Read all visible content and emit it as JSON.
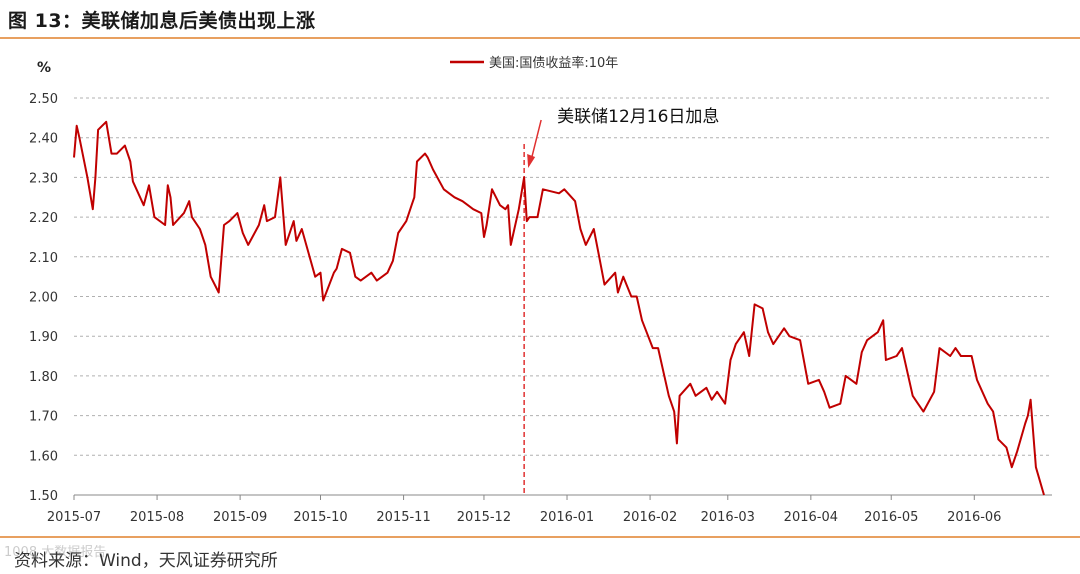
{
  "figure": {
    "title": "图 13：美联储加息后美债出现上涨",
    "source": "资料来源：Wind，天风证券研究所",
    "watermark": "1008 大数据报告"
  },
  "colors": {
    "series": "#c00000",
    "rule": "#e8a060",
    "grid": "#b0b0b0",
    "annotation": "#e03030"
  },
  "chart_data": {
    "type": "line",
    "title": "",
    "xlabel": "",
    "ylabel": "%",
    "ylim": [
      1.5,
      2.5
    ],
    "grid": "horizontal dashed",
    "legend_position": "top-center",
    "x_range": [
      "2015-07-01",
      "2016-06-30"
    ],
    "yticks": [
      "1.50",
      "1.60",
      "1.70",
      "1.80",
      "1.90",
      "2.00",
      "2.10",
      "2.20",
      "2.30",
      "2.40",
      "2.50"
    ],
    "xticks": [
      {
        "label": "2015-07",
        "date": "2015-07-01"
      },
      {
        "label": "2015-08",
        "date": "2015-08-01"
      },
      {
        "label": "2015-09",
        "date": "2015-09-01"
      },
      {
        "label": "2015-10",
        "date": "2015-10-01"
      },
      {
        "label": "2015-11",
        "date": "2015-11-01"
      },
      {
        "label": "2015-12",
        "date": "2015-12-01"
      },
      {
        "label": "2016-01",
        "date": "2016-01-01"
      },
      {
        "label": "2016-02",
        "date": "2016-02-01"
      },
      {
        "label": "2016-03",
        "date": "2016-03-01"
      },
      {
        "label": "2016-04",
        "date": "2016-04-01"
      },
      {
        "label": "2016-05",
        "date": "2016-05-01"
      },
      {
        "label": "2016-06",
        "date": "2016-06-01"
      }
    ],
    "series": [
      {
        "name": "美国:国债收益率:10年",
        "points": [
          [
            "2015-07-01",
            2.35
          ],
          [
            "2015-07-02",
            2.43
          ],
          [
            "2015-07-03",
            2.4
          ],
          [
            "2015-07-06",
            2.3
          ],
          [
            "2015-07-08",
            2.22
          ],
          [
            "2015-07-09",
            2.3
          ],
          [
            "2015-07-10",
            2.42
          ],
          [
            "2015-07-13",
            2.44
          ],
          [
            "2015-07-15",
            2.36
          ],
          [
            "2015-07-17",
            2.36
          ],
          [
            "2015-07-20",
            2.38
          ],
          [
            "2015-07-22",
            2.34
          ],
          [
            "2015-07-23",
            2.29
          ],
          [
            "2015-07-27",
            2.23
          ],
          [
            "2015-07-29",
            2.28
          ],
          [
            "2015-07-31",
            2.2
          ],
          [
            "2015-08-04",
            2.18
          ],
          [
            "2015-08-05",
            2.28
          ],
          [
            "2015-08-06",
            2.25
          ],
          [
            "2015-08-07",
            2.18
          ],
          [
            "2015-08-11",
            2.21
          ],
          [
            "2015-08-13",
            2.24
          ],
          [
            "2015-08-14",
            2.2
          ],
          [
            "2015-08-17",
            2.17
          ],
          [
            "2015-08-19",
            2.13
          ],
          [
            "2015-08-21",
            2.05
          ],
          [
            "2015-08-24",
            2.01
          ],
          [
            "2015-08-26",
            2.18
          ],
          [
            "2015-08-28",
            2.19
          ],
          [
            "2015-08-31",
            2.21
          ],
          [
            "2015-09-02",
            2.16
          ],
          [
            "2015-09-04",
            2.13
          ],
          [
            "2015-09-08",
            2.18
          ],
          [
            "2015-09-10",
            2.23
          ],
          [
            "2015-09-11",
            2.19
          ],
          [
            "2015-09-14",
            2.2
          ],
          [
            "2015-09-16",
            2.3
          ],
          [
            "2015-09-18",
            2.13
          ],
          [
            "2015-09-21",
            2.19
          ],
          [
            "2015-09-22",
            2.14
          ],
          [
            "2015-09-24",
            2.17
          ],
          [
            "2015-09-29",
            2.05
          ],
          [
            "2015-10-01",
            2.06
          ],
          [
            "2015-10-02",
            1.99
          ],
          [
            "2015-10-06",
            2.06
          ],
          [
            "2015-10-07",
            2.07
          ],
          [
            "2015-10-09",
            2.12
          ],
          [
            "2015-10-12",
            2.11
          ],
          [
            "2015-10-14",
            2.05
          ],
          [
            "2015-10-16",
            2.04
          ],
          [
            "2015-10-20",
            2.06
          ],
          [
            "2015-10-22",
            2.04
          ],
          [
            "2015-10-26",
            2.06
          ],
          [
            "2015-10-28",
            2.09
          ],
          [
            "2015-10-30",
            2.16
          ],
          [
            "2015-11-02",
            2.19
          ],
          [
            "2015-11-04",
            2.23
          ],
          [
            "2015-11-05",
            2.25
          ],
          [
            "2015-11-06",
            2.34
          ],
          [
            "2015-11-09",
            2.36
          ],
          [
            "2015-11-10",
            2.35
          ],
          [
            "2015-11-12",
            2.32
          ],
          [
            "2015-11-16",
            2.27
          ],
          [
            "2015-11-18",
            2.26
          ],
          [
            "2015-11-20",
            2.25
          ],
          [
            "2015-11-23",
            2.24
          ],
          [
            "2015-11-25",
            2.23
          ],
          [
            "2015-11-27",
            2.22
          ],
          [
            "2015-11-30",
            2.21
          ],
          [
            "2015-12-01",
            2.15
          ],
          [
            "2015-12-02",
            2.18
          ],
          [
            "2015-12-04",
            2.27
          ],
          [
            "2015-12-07",
            2.23
          ],
          [
            "2015-12-09",
            2.22
          ],
          [
            "2015-12-10",
            2.23
          ],
          [
            "2015-12-11",
            2.13
          ],
          [
            "2015-12-14",
            2.22
          ],
          [
            "2015-12-16",
            2.3
          ],
          [
            "2015-12-17",
            2.19
          ],
          [
            "2015-12-18",
            2.2
          ],
          [
            "2015-12-21",
            2.2
          ],
          [
            "2015-12-23",
            2.27
          ],
          [
            "2015-12-29",
            2.26
          ],
          [
            "2015-12-31",
            2.27
          ],
          [
            "2016-01-04",
            2.24
          ],
          [
            "2016-01-06",
            2.17
          ],
          [
            "2016-01-08",
            2.13
          ],
          [
            "2016-01-11",
            2.17
          ],
          [
            "2016-01-13",
            2.1
          ],
          [
            "2016-01-15",
            2.03
          ],
          [
            "2016-01-19",
            2.06
          ],
          [
            "2016-01-20",
            2.01
          ],
          [
            "2016-01-22",
            2.05
          ],
          [
            "2016-01-25",
            2.0
          ],
          [
            "2016-01-27",
            2.0
          ],
          [
            "2016-01-29",
            1.94
          ],
          [
            "2016-02-02",
            1.87
          ],
          [
            "2016-02-04",
            1.87
          ],
          [
            "2016-02-08",
            1.75
          ],
          [
            "2016-02-10",
            1.71
          ],
          [
            "2016-02-11",
            1.63
          ],
          [
            "2016-02-12",
            1.75
          ],
          [
            "2016-02-16",
            1.78
          ],
          [
            "2016-02-18",
            1.75
          ],
          [
            "2016-02-22",
            1.77
          ],
          [
            "2016-02-24",
            1.74
          ],
          [
            "2016-02-26",
            1.76
          ],
          [
            "2016-02-29",
            1.73
          ],
          [
            "2016-03-02",
            1.84
          ],
          [
            "2016-03-04",
            1.88
          ],
          [
            "2016-03-07",
            1.91
          ],
          [
            "2016-03-09",
            1.85
          ],
          [
            "2016-03-11",
            1.98
          ],
          [
            "2016-03-14",
            1.97
          ],
          [
            "2016-03-16",
            1.91
          ],
          [
            "2016-03-18",
            1.88
          ],
          [
            "2016-03-22",
            1.92
          ],
          [
            "2016-03-24",
            1.9
          ],
          [
            "2016-03-28",
            1.89
          ],
          [
            "2016-03-31",
            1.78
          ],
          [
            "2016-04-04",
            1.79
          ],
          [
            "2016-04-06",
            1.76
          ],
          [
            "2016-04-08",
            1.72
          ],
          [
            "2016-04-12",
            1.73
          ],
          [
            "2016-04-14",
            1.8
          ],
          [
            "2016-04-18",
            1.78
          ],
          [
            "2016-04-20",
            1.86
          ],
          [
            "2016-04-22",
            1.89
          ],
          [
            "2016-04-26",
            1.91
          ],
          [
            "2016-04-28",
            1.94
          ],
          [
            "2016-04-29",
            1.84
          ],
          [
            "2016-05-03",
            1.85
          ],
          [
            "2016-05-05",
            1.87
          ],
          [
            "2016-05-09",
            1.75
          ],
          [
            "2016-05-11",
            1.73
          ],
          [
            "2016-05-13",
            1.71
          ],
          [
            "2016-05-17",
            1.76
          ],
          [
            "2016-05-19",
            1.87
          ],
          [
            "2016-05-23",
            1.85
          ],
          [
            "2016-05-25",
            1.87
          ],
          [
            "2016-05-27",
            1.85
          ],
          [
            "2016-05-31",
            1.85
          ],
          [
            "2016-06-02",
            1.79
          ],
          [
            "2016-06-06",
            1.73
          ],
          [
            "2016-06-08",
            1.71
          ],
          [
            "2016-06-10",
            1.64
          ],
          [
            "2016-06-13",
            1.62
          ],
          [
            "2016-06-15",
            1.57
          ],
          [
            "2016-06-17",
            1.61
          ],
          [
            "2016-06-20",
            1.68
          ],
          [
            "2016-06-21",
            1.7
          ],
          [
            "2016-06-22",
            1.74
          ],
          [
            "2016-06-24",
            1.57
          ],
          [
            "2016-06-27",
            1.5
          ]
        ]
      }
    ],
    "annotations": [
      {
        "text": "美联储12月16日加息",
        "date": "2015-12-16",
        "type": "vertical-dashed-line-with-arrow"
      }
    ]
  }
}
